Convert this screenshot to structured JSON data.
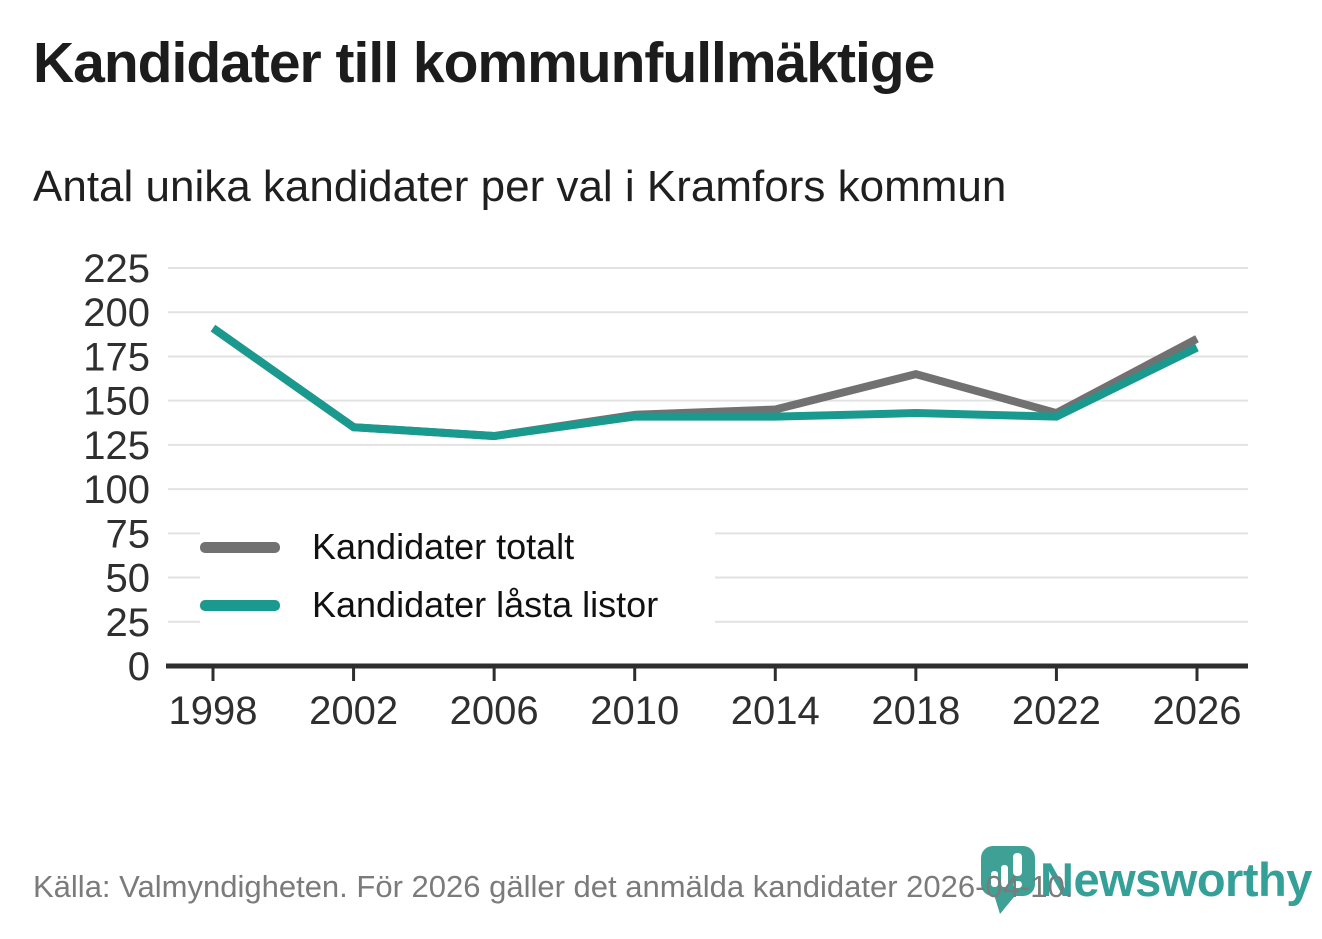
{
  "header": {
    "title": "Kandidater till kommunfullmäktige",
    "subtitle": "Antal unika kandidater per val i Kramfors kommun"
  },
  "chart_data": {
    "type": "line",
    "x": [
      1998,
      2002,
      2006,
      2010,
      2014,
      2018,
      2022,
      2026
    ],
    "series": [
      {
        "name": "Kandidater totalt",
        "color": "#717171",
        "values": [
          191,
          135,
          130,
          142,
          145,
          165,
          143,
          185
        ]
      },
      {
        "name": "Kandidater låsta listor",
        "color": "#1a9a8f",
        "values": [
          191,
          135,
          130,
          141,
          141,
          143,
          141,
          180
        ]
      }
    ],
    "title": "Kandidater till kommunfullmäktige",
    "subtitle": "Antal unika kandidater per val i Kramfors kommun",
    "xlabel": "",
    "ylabel": "",
    "ylim": [
      0,
      225
    ],
    "ytick_step": 25,
    "grid": "horizontal",
    "legend_position": "inside-left-middle"
  },
  "footer": {
    "source": "Källa: Valmyndigheten. För 2026 gäller det anmälda kandidater 2026-04-10.",
    "brand": "Newsworthy"
  },
  "colors": {
    "line_teal": "#1a9a8f",
    "line_gray": "#717171",
    "brand_teal": "#35a098",
    "gridline": "#e2e2e2",
    "axis": "#2e2e2e",
    "tick_label": "#2f2f2f"
  }
}
